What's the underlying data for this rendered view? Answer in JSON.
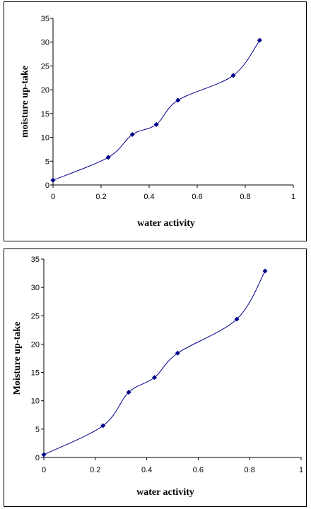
{
  "chart_data": [
    {
      "type": "line",
      "xlabel": "water activity",
      "ylabel": "moisture up-take",
      "xlim": [
        0,
        1
      ],
      "ylim": [
        0,
        35
      ],
      "xticks": [
        "0",
        "0.2",
        "0.4",
        "0.6",
        "0.8",
        "1"
      ],
      "yticks": [
        "0",
        "5",
        "10",
        "15",
        "20",
        "25",
        "30",
        "35"
      ],
      "grid": false,
      "legend": "none",
      "series": [
        {
          "color": "#00008B",
          "x": [
            0,
            0.23,
            0.33,
            0.43,
            0.52,
            0.75,
            0.86
          ],
          "y": [
            1.0,
            5.8,
            10.6,
            12.7,
            17.8,
            23.0,
            30.4
          ]
        }
      ]
    },
    {
      "type": "line",
      "xlabel": "water activity",
      "ylabel": "Moisture up-take",
      "xlim": [
        0,
        1
      ],
      "ylim": [
        0,
        35
      ],
      "xticks": [
        "0",
        "0.2",
        "0.4",
        "0.6",
        "0.8",
        "1"
      ],
      "yticks": [
        "0",
        "5",
        "10",
        "15",
        "20",
        "25",
        "30",
        "35"
      ],
      "grid": false,
      "legend": "none",
      "series": [
        {
          "color": "#00008B",
          "x": [
            0,
            0.23,
            0.33,
            0.43,
            0.52,
            0.75,
            0.86
          ],
          "y": [
            0.5,
            5.6,
            11.5,
            14.1,
            18.4,
            24.4,
            32.9
          ]
        }
      ]
    }
  ]
}
